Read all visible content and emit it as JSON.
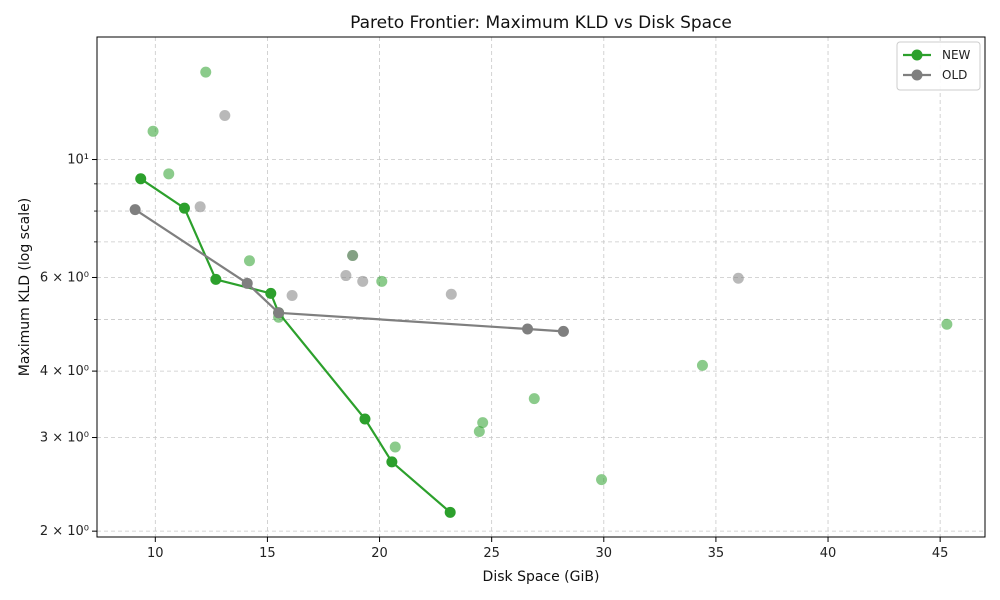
{
  "chart_data": {
    "type": "scatter",
    "title": "Pareto Frontier: Maximum KLD vs Disk Space",
    "xlabel": "Disk Space (GiB)",
    "ylabel": "Maximum KLD (log scale)",
    "xlim": [
      7.4,
      47.0
    ],
    "ylim": [
      1.95,
      17.0
    ],
    "yscale": "log",
    "x_ticks": [
      10,
      15,
      20,
      25,
      30,
      35,
      40,
      45
    ],
    "y_ticks": [
      {
        "value": 2,
        "label": "2 × 10⁰"
      },
      {
        "value": 3,
        "label": "3 × 10⁰"
      },
      {
        "value": 4,
        "label": "4 × 10⁰"
      },
      {
        "value": 6,
        "label": "6 × 10⁰"
      },
      {
        "value": 10,
        "label": "10¹"
      }
    ],
    "y_minor_ticks": [
      5,
      7,
      8,
      9
    ],
    "grid": true,
    "legend_position": "top-right",
    "series": [
      {
        "name": "NEW",
        "color": "#2ca02c",
        "points": [
          {
            "x": 12.25,
            "y": 14.6
          },
          {
            "x": 9.9,
            "y": 11.3
          },
          {
            "x": 10.6,
            "y": 9.4
          },
          {
            "x": 14.2,
            "y": 6.45
          },
          {
            "x": 18.8,
            "y": 6.6
          },
          {
            "x": 20.1,
            "y": 5.9
          },
          {
            "x": 15.5,
            "y": 5.05
          },
          {
            "x": 26.9,
            "y": 3.55
          },
          {
            "x": 24.6,
            "y": 3.2
          },
          {
            "x": 24.45,
            "y": 3.08
          },
          {
            "x": 20.7,
            "y": 2.88
          },
          {
            "x": 29.9,
            "y": 2.5
          },
          {
            "x": 34.4,
            "y": 4.1
          },
          {
            "x": 45.3,
            "y": 4.9
          }
        ],
        "frontier": [
          {
            "x": 9.35,
            "y": 9.2
          },
          {
            "x": 11.3,
            "y": 8.1
          },
          {
            "x": 12.7,
            "y": 5.95
          },
          {
            "x": 15.15,
            "y": 5.6
          },
          {
            "x": 15.5,
            "y": 5.15
          },
          {
            "x": 19.35,
            "y": 3.25
          },
          {
            "x": 20.55,
            "y": 2.7
          },
          {
            "x": 23.15,
            "y": 2.17
          }
        ]
      },
      {
        "name": "OLD",
        "color": "#7f7f7f",
        "points": [
          {
            "x": 13.1,
            "y": 12.1
          },
          {
            "x": 12.0,
            "y": 8.15
          },
          {
            "x": 18.8,
            "y": 6.6
          },
          {
            "x": 18.5,
            "y": 6.05
          },
          {
            "x": 19.25,
            "y": 5.9
          },
          {
            "x": 16.1,
            "y": 5.55
          },
          {
            "x": 23.2,
            "y": 5.58
          },
          {
            "x": 36.0,
            "y": 5.98
          }
        ],
        "frontier": [
          {
            "x": 9.1,
            "y": 8.05
          },
          {
            "x": 14.1,
            "y": 5.85
          },
          {
            "x": 15.5,
            "y": 5.15
          },
          {
            "x": 26.6,
            "y": 4.8
          },
          {
            "x": 28.2,
            "y": 4.75
          }
        ]
      }
    ]
  }
}
